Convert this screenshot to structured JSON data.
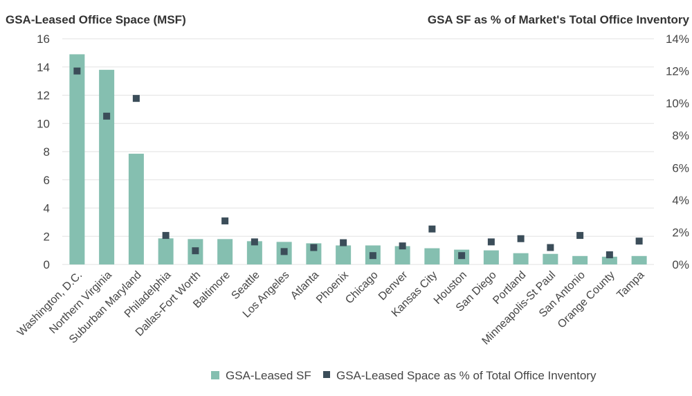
{
  "chart_data": {
    "type": "bar",
    "left_axis_title": "GSA-Leased Office Space (MSF)",
    "right_axis_title": "GSA SF as % of Market's Total Office Inventory",
    "categories": [
      "Washington, D.C.",
      "Northern Virginia",
      "Suburban Maryland",
      "Philadelphia",
      "Dallas-Fort Worth",
      "Baltimore",
      "Seattle",
      "Los Angeles",
      "Atlanta",
      "Phoenix",
      "Chicago",
      "Denver",
      "Kansas City",
      "Houston",
      "San Diego",
      "Portland",
      "Minneapolis-St Paul",
      "San Antonio",
      "Orange County",
      "Tampa"
    ],
    "series": [
      {
        "name": "GSA-Leased SF",
        "type": "bar",
        "axis": "left",
        "color": "#85bfb0",
        "values": [
          14.9,
          13.8,
          7.85,
          1.85,
          1.8,
          1.8,
          1.65,
          1.6,
          1.5,
          1.35,
          1.35,
          1.3,
          1.15,
          1.05,
          1.0,
          0.8,
          0.75,
          0.6,
          0.55,
          0.6
        ]
      },
      {
        "name": "GSA-Leased Space as % of Total Office Inventory",
        "type": "marker",
        "axis": "right",
        "color": "#3b4d59",
        "values": [
          12.0,
          9.2,
          10.3,
          1.8,
          0.85,
          2.7,
          1.4,
          0.8,
          1.05,
          1.35,
          0.55,
          1.15,
          2.2,
          0.55,
          1.4,
          1.6,
          1.05,
          1.8,
          0.6,
          1.45
        ]
      }
    ],
    "left_axis": {
      "min": 0,
      "max": 16,
      "ticks": [
        "0",
        "2",
        "4",
        "6",
        "8",
        "10",
        "12",
        "14",
        "16"
      ]
    },
    "right_axis": {
      "min": 0,
      "max": 14,
      "ticks": [
        "0%",
        "2%",
        "4%",
        "6%",
        "8%",
        "10%",
        "12%",
        "14%"
      ]
    },
    "grid": true,
    "legend_position": "bottom"
  }
}
